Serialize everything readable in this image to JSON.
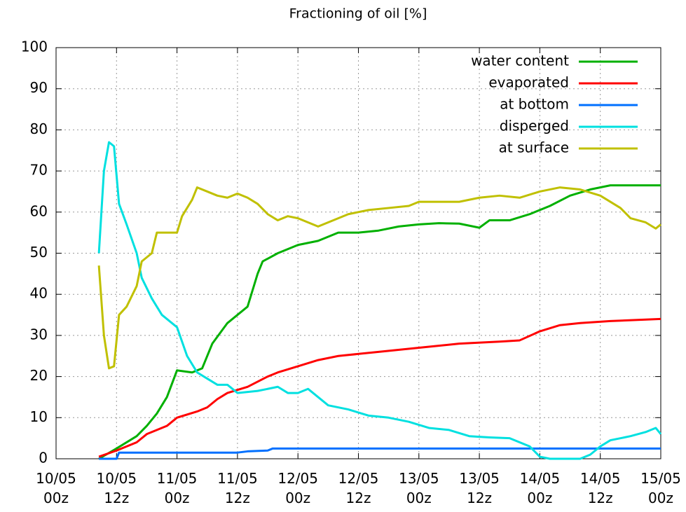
{
  "chart_data": {
    "type": "line",
    "title": "Fractioning of oil [%]",
    "xlim": [
      0,
      120
    ],
    "xticks": [
      {
        "value": 0,
        "label": "10/05\n00z"
      },
      {
        "value": 12,
        "label": "10/05\n12z"
      },
      {
        "value": 24,
        "label": "11/05\n00z"
      },
      {
        "value": 36,
        "label": "11/05\n12z"
      },
      {
        "value": 48,
        "label": "12/05\n00z"
      },
      {
        "value": 60,
        "label": "12/05\n12z"
      },
      {
        "value": 72,
        "label": "13/05\n00z"
      },
      {
        "value": 84,
        "label": "13/05\n12z"
      },
      {
        "value": 96,
        "label": "14/05\n00z"
      },
      {
        "value": 108,
        "label": "14/05\n12z"
      },
      {
        "value": 120,
        "label": "15/05\n00z"
      }
    ],
    "ylim": [
      0,
      100
    ],
    "yticks": [
      0,
      10,
      20,
      30,
      40,
      50,
      60,
      70,
      80,
      90,
      100
    ],
    "grid": true,
    "legend": "top-right",
    "series": [
      {
        "name": "water content",
        "color": "#00b000",
        "x": [
          8.5,
          12,
          16,
          18,
          20,
          22,
          24,
          27,
          29,
          31,
          34,
          36,
          38,
          40,
          41,
          44,
          48,
          52,
          56,
          60,
          64,
          68,
          72,
          76,
          80,
          84,
          86,
          90,
          94,
          98,
          102,
          106,
          110,
          120
        ],
        "values": [
          0,
          2.5,
          5.5,
          8,
          11,
          15,
          21.5,
          21,
          22,
          28,
          33,
          35,
          37,
          45,
          48,
          50,
          52,
          53,
          55,
          55,
          55.5,
          56.5,
          57,
          57.3,
          57.2,
          56.2,
          58,
          58,
          59.5,
          61.5,
          64,
          65.5,
          66.5,
          66.5
        ]
      },
      {
        "name": "evaporated",
        "color": "#ff0000",
        "x": [
          8.5,
          12,
          16,
          18,
          22,
          24,
          28,
          30,
          32,
          34,
          38,
          42,
          44,
          48,
          52,
          56,
          64,
          72,
          80,
          88,
          92,
          96,
          100,
          104,
          110,
          120
        ],
        "values": [
          0.5,
          2,
          4,
          6,
          8,
          10,
          11.5,
          12.5,
          14.5,
          16,
          17.5,
          20,
          21,
          22.5,
          24,
          25,
          26,
          27,
          28,
          28.5,
          28.8,
          31,
          32.5,
          33,
          33.5,
          34
        ]
      },
      {
        "name": "at bottom",
        "color": "#0070ff",
        "x": [
          8.5,
          12,
          12.5,
          36,
          38,
          42,
          43,
          120
        ],
        "values": [
          0,
          0,
          1.5,
          1.5,
          1.8,
          2,
          2.5,
          2.5
        ]
      },
      {
        "name": "disperged",
        "color": "#00e0e0",
        "x": [
          8.5,
          9.5,
          10.5,
          11.5,
          12.5,
          14,
          16,
          17,
          19,
          21,
          23,
          24,
          26,
          28,
          30,
          32,
          34,
          36,
          40,
          44,
          46,
          48,
          50,
          52,
          54,
          58,
          62,
          66,
          70,
          74,
          78,
          82,
          86,
          90,
          94,
          96,
          98,
          104,
          106,
          108,
          110,
          114,
          117,
          119,
          120
        ],
        "values": [
          50,
          70,
          77,
          76,
          62,
          57,
          50,
          44,
          39,
          35,
          33,
          32,
          25,
          21,
          19.5,
          18,
          18,
          16,
          16.5,
          17.5,
          16,
          16,
          17,
          15,
          13,
          12,
          10.5,
          10,
          9,
          7.5,
          7,
          5.5,
          5.2,
          5,
          3,
          0.5,
          0,
          0,
          1,
          3,
          4.5,
          5.5,
          6.5,
          7.5,
          6
        ]
      },
      {
        "name": "at surface",
        "color": "#c0c000",
        "x": [
          8.5,
          9.5,
          10.5,
          11.5,
          12.5,
          14,
          16,
          17,
          19,
          20,
          22,
          24,
          25,
          27,
          28,
          30,
          32,
          34,
          36,
          38,
          40,
          42,
          44,
          46,
          48,
          50,
          52,
          54,
          58,
          62,
          66,
          70,
          72,
          76,
          80,
          84,
          88,
          92,
          96,
          100,
          104,
          108,
          112,
          114,
          117,
          119,
          120
        ],
        "values": [
          47,
          30,
          22,
          22.5,
          35,
          37,
          42,
          48,
          50,
          55,
          55,
          55,
          59,
          63,
          66,
          65,
          64,
          63.5,
          64.5,
          63.5,
          62,
          59.5,
          58,
          59,
          58.5,
          57.5,
          56.5,
          57.5,
          59.5,
          60.5,
          61,
          61.5,
          62.5,
          62.5,
          62.5,
          63.5,
          64,
          63.5,
          65,
          66,
          65.5,
          64,
          61,
          58.5,
          57.5,
          56,
          57
        ]
      }
    ]
  }
}
